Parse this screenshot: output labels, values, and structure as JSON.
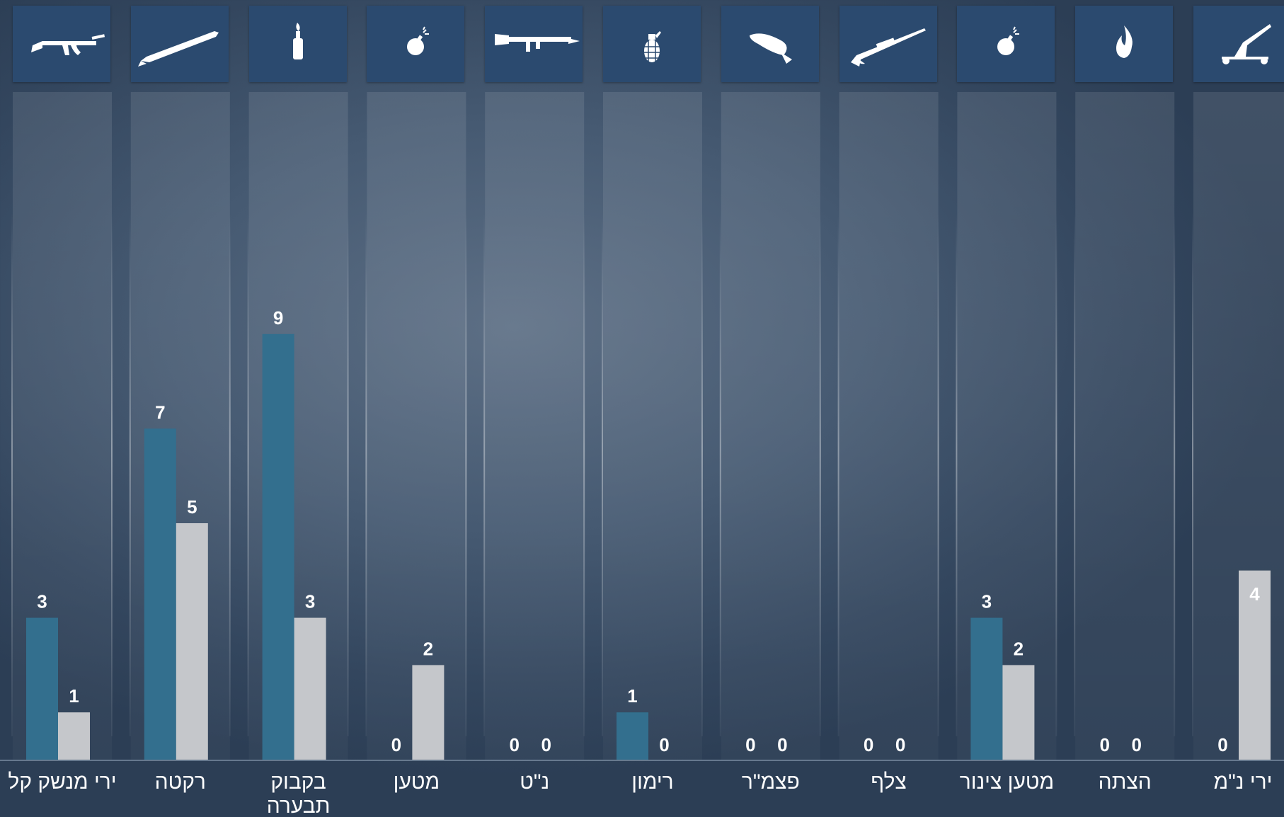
{
  "chart_data": {
    "type": "bar",
    "categories": [
      "ירי מנשק קל",
      "רקטה",
      "בקבוק תבערה",
      "מטען",
      "נ\"ט",
      "רימון",
      "פצמ\"ר",
      "צלף",
      "מטען צינור",
      "הצתה",
      "ירי נ\"מ"
    ],
    "series": [
      {
        "values": [
          3,
          7,
          9,
          0,
          0,
          1,
          0,
          0,
          3,
          0,
          0
        ]
      },
      {
        "values": [
          1,
          5,
          3,
          2,
          0,
          0,
          0,
          0,
          2,
          0,
          4
        ]
      }
    ],
    "value_labels": [
      [
        "3",
        "7",
        "9",
        "0",
        "0",
        "1",
        "0",
        "0",
        "3",
        "0",
        "0"
      ],
      [
        "1",
        "5",
        "3",
        "2",
        "0",
        "0",
        "0",
        "0",
        "2",
        "0",
        "4"
      ]
    ],
    "ylim": [
      0,
      10
    ],
    "grid": false,
    "legend": "none",
    "colors": {
      "series_a": "#336f8e",
      "series_b": "#c5c7cb",
      "icon_box": "#2b4a6f",
      "column": "#ffffff"
    },
    "icons": [
      "rifle-icon",
      "rocket-icon",
      "molotov-bottle-icon",
      "bomb-icon",
      "rpg-launcher-icon",
      "hand-grenade-icon",
      "mortar-shell-icon",
      "sniper-rifle-icon",
      "bomb-icon",
      "fire-icon",
      "anti-aircraft-gun-icon"
    ]
  }
}
